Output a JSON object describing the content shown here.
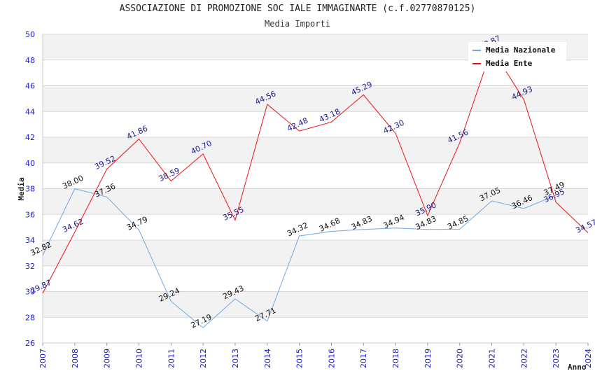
{
  "chart_data": {
    "type": "line",
    "title": "ASSOCIAZIONE DI PROMOZIONE SOC IALE IMMAGINARTE (c.f.02770870125)",
    "subtitle": "Media Importi",
    "xlabel": "Anno",
    "ylabel": "Media",
    "x": [
      "2007",
      "2008",
      "2009",
      "2010",
      "2011",
      "2012",
      "2013",
      "2014",
      "2015",
      "2016",
      "2017",
      "2018",
      "2019",
      "2020",
      "2021",
      "2022",
      "2023",
      "2024"
    ],
    "ylim": [
      26,
      50
    ],
    "yticks": [
      26,
      28,
      30,
      32,
      34,
      36,
      38,
      40,
      42,
      44,
      46,
      48,
      50
    ],
    "grid": true,
    "legend_position": "top-right",
    "series": [
      {
        "name": "Media Nazionale",
        "color": "#6fa8e0",
        "label_color": "#111111",
        "values": [
          32.82,
          38.0,
          37.36,
          34.79,
          29.24,
          27.19,
          29.43,
          27.71,
          34.32,
          34.68,
          34.83,
          34.94,
          34.83,
          34.85,
          37.05,
          36.46,
          37.49,
          null
        ],
        "labels": [
          "32.82",
          "38.00",
          "37.36",
          "34.79",
          "29.24",
          "27.19",
          "29.43",
          "27.71",
          "34.32",
          "34.68",
          "34.83",
          "34.94",
          "34.83",
          "34.85",
          "37.05",
          "36.46",
          "37.49",
          ""
        ]
      },
      {
        "name": "Media Ente",
        "color": "#ee1111",
        "label_color": "#1a1a8c",
        "values": [
          29.87,
          34.62,
          39.52,
          41.86,
          38.59,
          40.7,
          35.55,
          44.56,
          42.48,
          43.18,
          45.29,
          42.3,
          35.9,
          41.56,
          48.87,
          44.93,
          36.95,
          34.57
        ],
        "labels": [
          "29.87",
          "34.62",
          "39.52",
          "41.86",
          "38.59",
          "40.70",
          "35.55",
          "44.56",
          "42.48",
          "43.18",
          "45.29",
          "42.30",
          "35.90",
          "41.56",
          "48.87",
          "44.93",
          "36.95",
          "34.57"
        ]
      }
    ],
    "colors": {
      "tick_text": "#1a1acc",
      "band": "#f2f2f2",
      "grid": "#d8d8d8"
    }
  }
}
